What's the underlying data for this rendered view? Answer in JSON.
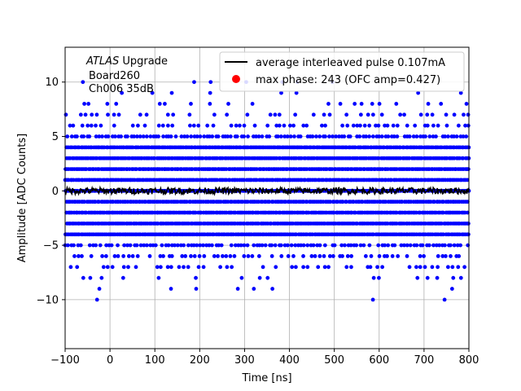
{
  "chart_data": {
    "type": "scatter",
    "title": "",
    "xlabel": "Time [ns]",
    "ylabel": "Amplitude [ADC Counts]",
    "xlim": [
      -100,
      800
    ],
    "ylim": [
      -14.5,
      13.2
    ],
    "grid": true,
    "legend_placement": "top-right",
    "x_ticks": [
      -100,
      0,
      100,
      200,
      300,
      400,
      500,
      600,
      700,
      800
    ],
    "x_tick_labels": [
      "−100",
      "0",
      "100",
      "200",
      "300",
      "400",
      "500",
      "600",
      "700",
      "800"
    ],
    "y_ticks": [
      -10,
      -5,
      0,
      5,
      10
    ],
    "y_tick_labels": [
      "−10",
      "−5",
      "0",
      "5",
      "10"
    ],
    "annotation": {
      "line1_italic": "ATLAS",
      "line1_rest": " Upgrade",
      "line2": "Board260",
      "line3": "Ch006 35dB"
    },
    "series": [
      {
        "name": "average interleaved pulse 0.107mA",
        "kind": "line",
        "color": "#000000",
        "baseline": 0.0,
        "noise_amplitude": 0.3,
        "x_range": [
          -100,
          800
        ]
      },
      {
        "name": "max phase: 243 (OFC amp=0.427)",
        "kind": "scatter",
        "color": "#0000ff",
        "y_levels": [
          -11,
          -10,
          -9,
          -8,
          -7,
          -6,
          -5,
          -4,
          -3,
          -2,
          -1,
          0,
          1,
          2,
          3,
          4,
          5,
          6,
          7,
          8,
          9,
          10,
          11
        ],
        "x_range": [
          -100,
          800
        ]
      }
    ],
    "legend": [
      {
        "label": "average interleaved pulse 0.107mA",
        "marker": "line",
        "color": "#000000"
      },
      {
        "label": "max phase: 243 (OFC amp=0.427)",
        "marker": "dot",
        "color": "#ff0000"
      }
    ]
  }
}
